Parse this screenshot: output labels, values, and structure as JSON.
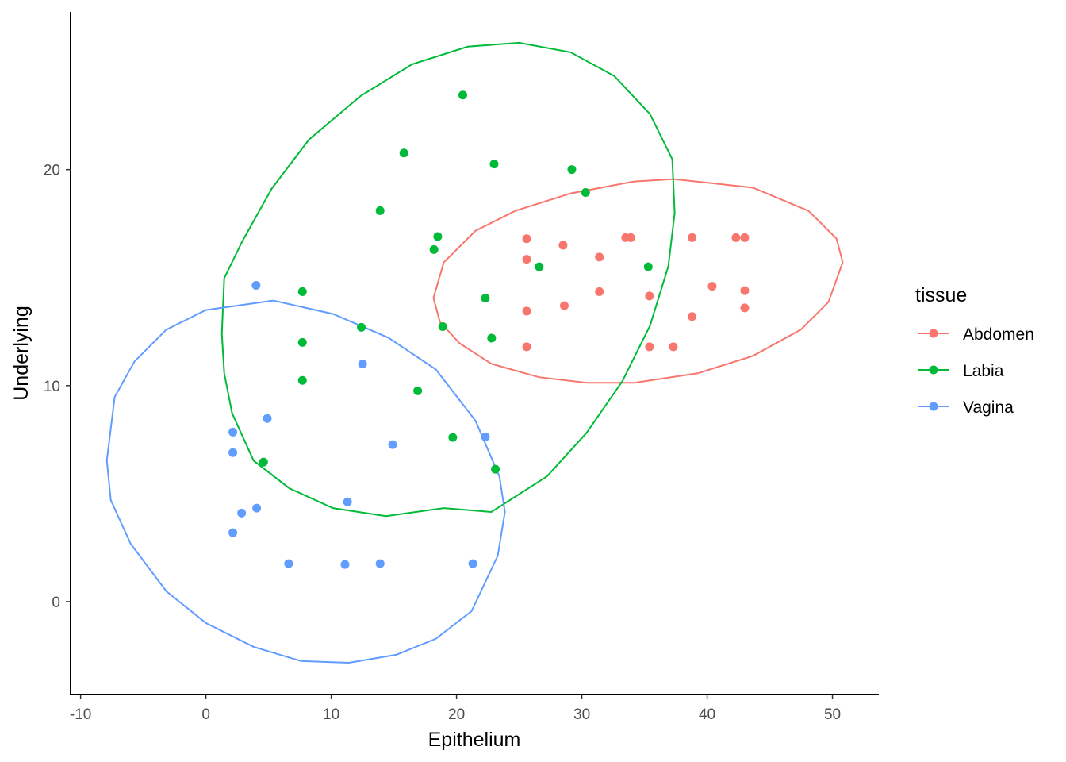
{
  "chart_data": {
    "type": "scatter",
    "title": "",
    "xlabel": "Epithelium",
    "ylabel": "Underlying",
    "xlim": [
      -10.8,
      53.7
    ],
    "ylim": [
      -4.3,
      27.3
    ],
    "xticks": [
      -10,
      0,
      10,
      20,
      30,
      40,
      50
    ],
    "yticks": [
      0,
      10,
      20
    ],
    "grid": false,
    "legend": {
      "title": "tissue",
      "placement": "right"
    },
    "series": [
      {
        "name": "Abdomen",
        "color": "#F8766D",
        "points": [
          [
            25.6,
            16.8
          ],
          [
            28.5,
            16.5
          ],
          [
            25.6,
            15.85
          ],
          [
            31.4,
            15.95
          ],
          [
            33.5,
            16.85
          ],
          [
            33.9,
            16.85
          ],
          [
            38.8,
            16.85
          ],
          [
            42.3,
            16.85
          ],
          [
            43.0,
            16.85
          ],
          [
            40.4,
            14.6
          ],
          [
            43.0,
            14.4
          ],
          [
            31.4,
            14.35
          ],
          [
            35.4,
            14.15
          ],
          [
            25.6,
            13.45
          ],
          [
            28.6,
            13.7
          ],
          [
            38.8,
            13.2
          ],
          [
            43.0,
            13.6
          ],
          [
            25.6,
            11.8
          ],
          [
            35.4,
            11.8
          ],
          [
            37.3,
            11.8
          ]
        ],
        "ellipse": [
          [
            18.16,
            14.06
          ],
          [
            18.99,
            15.71
          ],
          [
            21.52,
            17.17
          ],
          [
            24.68,
            18.09
          ],
          [
            29.11,
            18.9
          ],
          [
            34.18,
            19.45
          ],
          [
            37.34,
            19.56
          ],
          [
            43.67,
            19.16
          ],
          [
            48.1,
            18.09
          ],
          [
            50.32,
            16.81
          ],
          [
            50.82,
            15.71
          ],
          [
            49.68,
            13.87
          ],
          [
            47.47,
            12.59
          ],
          [
            43.67,
            11.38
          ],
          [
            39.24,
            10.57
          ],
          [
            34.18,
            10.13
          ],
          [
            30.38,
            10.13
          ],
          [
            26.58,
            10.39
          ],
          [
            22.78,
            11.01
          ],
          [
            20.25,
            11.96
          ],
          [
            18.67,
            12.95
          ]
        ]
      },
      {
        "name": "Labia",
        "color": "#00BA38",
        "points": [
          [
            20.5,
            23.45
          ],
          [
            15.8,
            20.77
          ],
          [
            23.0,
            20.26
          ],
          [
            29.2,
            20.0
          ],
          [
            30.3,
            18.94
          ],
          [
            13.9,
            18.1
          ],
          [
            18.5,
            16.9
          ],
          [
            18.2,
            16.3
          ],
          [
            26.6,
            15.5
          ],
          [
            35.3,
            15.5
          ],
          [
            22.3,
            14.05
          ],
          [
            7.7,
            14.35
          ],
          [
            12.4,
            12.7
          ],
          [
            18.9,
            12.73
          ],
          [
            22.8,
            12.2
          ],
          [
            7.7,
            12.0
          ],
          [
            7.7,
            10.24
          ],
          [
            16.9,
            9.76
          ],
          [
            19.7,
            7.6
          ],
          [
            23.1,
            6.13
          ],
          [
            4.6,
            6.46
          ]
        ],
        "ellipse": [
          [
            1.27,
            12.4
          ],
          [
            1.46,
            14.97
          ],
          [
            2.85,
            16.62
          ],
          [
            5.25,
            19.12
          ],
          [
            8.23,
            21.39
          ],
          [
            12.34,
            23.41
          ],
          [
            16.46,
            24.88
          ],
          [
            20.89,
            25.69
          ],
          [
            25.0,
            25.87
          ],
          [
            29.11,
            25.43
          ],
          [
            32.59,
            24.33
          ],
          [
            35.44,
            22.57
          ],
          [
            37.22,
            20.48
          ],
          [
            37.41,
            17.98
          ],
          [
            36.9,
            15.52
          ],
          [
            35.44,
            12.77
          ],
          [
            33.23,
            10.2
          ],
          [
            30.38,
            7.82
          ],
          [
            27.22,
            5.8
          ],
          [
            22.78,
            4.15
          ],
          [
            18.99,
            4.33
          ],
          [
            14.37,
            3.96
          ],
          [
            10.13,
            4.33
          ],
          [
            6.65,
            5.25
          ],
          [
            3.8,
            6.53
          ],
          [
            2.09,
            8.73
          ],
          [
            1.46,
            10.57
          ]
        ]
      },
      {
        "name": "Vagina",
        "color": "#619CFF",
        "points": [
          [
            4.0,
            14.64
          ],
          [
            12.5,
            11.0
          ],
          [
            4.9,
            8.48
          ],
          [
            2.15,
            7.85
          ],
          [
            2.15,
            6.9
          ],
          [
            14.9,
            7.27
          ],
          [
            22.3,
            7.63
          ],
          [
            11.3,
            4.62
          ],
          [
            4.05,
            4.33
          ],
          [
            2.85,
            4.1
          ],
          [
            2.15,
            3.19
          ],
          [
            6.6,
            1.76
          ],
          [
            11.1,
            1.72
          ],
          [
            13.9,
            1.76
          ],
          [
            21.3,
            1.76
          ]
        ],
        "ellipse": [
          [
            -7.91,
            6.53
          ],
          [
            -7.28,
            9.47
          ],
          [
            -5.7,
            11.12
          ],
          [
            -3.16,
            12.59
          ],
          [
            0,
            13.5
          ],
          [
            5.38,
            13.94
          ],
          [
            10.13,
            13.32
          ],
          [
            14.56,
            12.22
          ],
          [
            18.35,
            10.75
          ],
          [
            21.52,
            8.37
          ],
          [
            23.42,
            5.8
          ],
          [
            23.86,
            4.15
          ],
          [
            23.29,
            2.13
          ],
          [
            21.2,
            -0.44
          ],
          [
            18.35,
            -1.72
          ],
          [
            15.19,
            -2.46
          ],
          [
            11.39,
            -2.83
          ],
          [
            7.59,
            -2.75
          ],
          [
            3.8,
            -2.09
          ],
          [
            0,
            -0.99
          ],
          [
            -3.16,
            0.48
          ],
          [
            -6.01,
            2.68
          ],
          [
            -7.59,
            4.7
          ]
        ]
      }
    ]
  }
}
